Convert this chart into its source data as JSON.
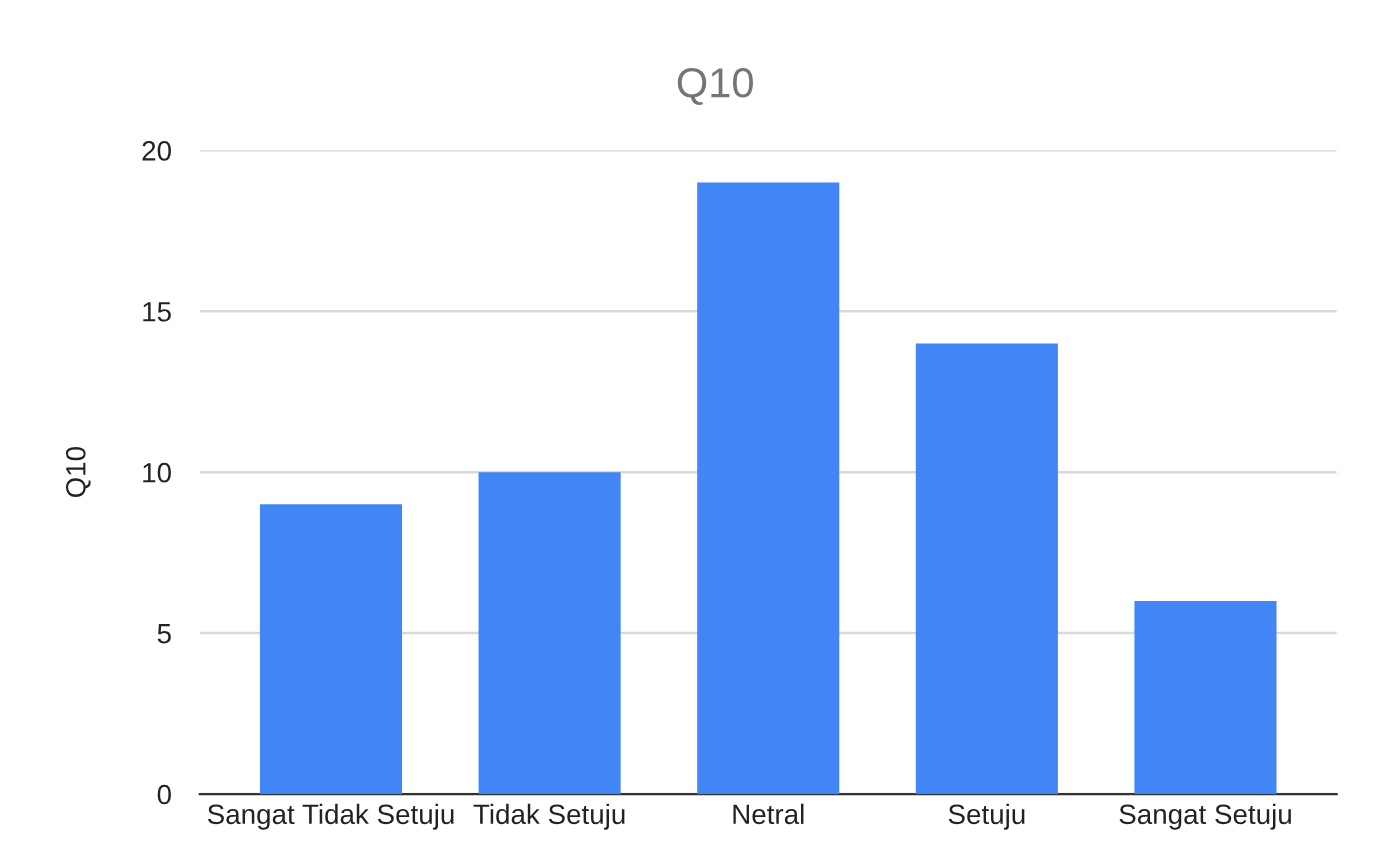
{
  "chart_data": {
    "type": "bar",
    "title": "Q10",
    "ylabel": "Q10",
    "categories": [
      "Sangat Tidak Setuju",
      "Tidak Setuju",
      "Netral",
      "Setuju",
      "Sangat Setuju"
    ],
    "values": [
      9,
      10,
      19,
      14,
      6
    ],
    "color": "#4285f4",
    "ylim": [
      0,
      20
    ],
    "yticks": [
      0,
      5,
      10,
      15,
      20
    ],
    "grid": "y",
    "legend": false
  }
}
